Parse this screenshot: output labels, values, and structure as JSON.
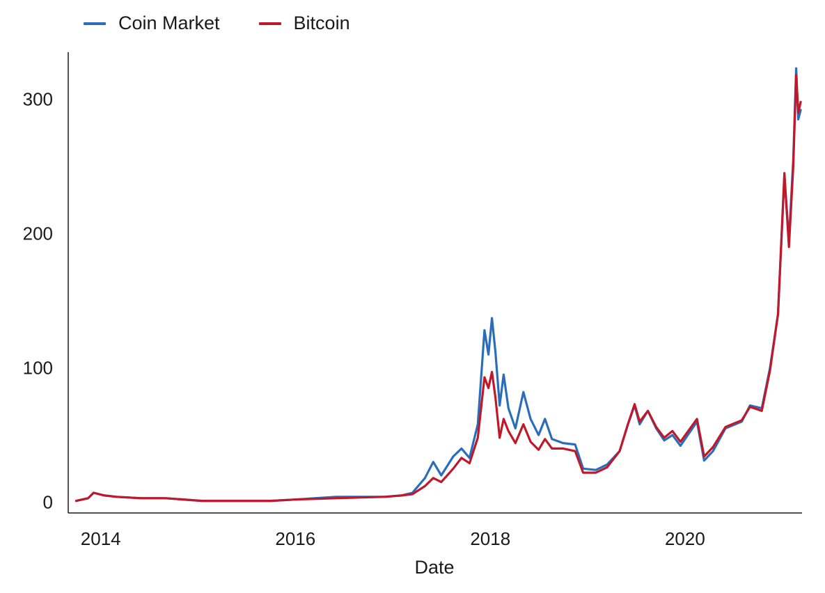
{
  "chart_data": {
    "type": "line",
    "title": "",
    "xlabel": "Date",
    "ylabel": "",
    "xlim": [
      "2013-09-01",
      "2021-03-15"
    ],
    "ylim": [
      -8,
      335
    ],
    "x_ticks": [
      {
        "label": "2014",
        "date": "2014-01-01"
      },
      {
        "label": "2016",
        "date": "2016-01-01"
      },
      {
        "label": "2018",
        "date": "2018-01-01"
      },
      {
        "label": "2020",
        "date": "2020-01-01"
      }
    ],
    "y_ticks": [
      0,
      100,
      200,
      300
    ],
    "grid": false,
    "legend_position": "top-left",
    "series": [
      {
        "name": "Coin Market",
        "color": "#2a6ebb",
        "points": [
          [
            "2013-10-01",
            1
          ],
          [
            "2013-11-15",
            3
          ],
          [
            "2013-12-05",
            7
          ],
          [
            "2014-01-15",
            5
          ],
          [
            "2014-03-01",
            4
          ],
          [
            "2014-06-01",
            3
          ],
          [
            "2014-09-01",
            3
          ],
          [
            "2015-01-15",
            1
          ],
          [
            "2015-06-01",
            1
          ],
          [
            "2015-10-01",
            1
          ],
          [
            "2016-01-01",
            2
          ],
          [
            "2016-06-01",
            4
          ],
          [
            "2016-12-01",
            4
          ],
          [
            "2017-02-01",
            5
          ],
          [
            "2017-03-15",
            7
          ],
          [
            "2017-05-01",
            18
          ],
          [
            "2017-06-01",
            30
          ],
          [
            "2017-07-01",
            20
          ],
          [
            "2017-08-15",
            34
          ],
          [
            "2017-09-15",
            40
          ],
          [
            "2017-10-15",
            33
          ],
          [
            "2017-11-15",
            58
          ],
          [
            "2017-12-10",
            128
          ],
          [
            "2017-12-25",
            110
          ],
          [
            "2018-01-07",
            137
          ],
          [
            "2018-01-20",
            112
          ],
          [
            "2018-02-05",
            72
          ],
          [
            "2018-02-20",
            95
          ],
          [
            "2018-03-10",
            70
          ],
          [
            "2018-04-05",
            55
          ],
          [
            "2018-05-05",
            82
          ],
          [
            "2018-06-01",
            62
          ],
          [
            "2018-07-01",
            50
          ],
          [
            "2018-07-25",
            62
          ],
          [
            "2018-08-20",
            47
          ],
          [
            "2018-10-01",
            44
          ],
          [
            "2018-11-15",
            43
          ],
          [
            "2018-12-15",
            25
          ],
          [
            "2019-02-01",
            24
          ],
          [
            "2019-03-15",
            28
          ],
          [
            "2019-05-01",
            38
          ],
          [
            "2019-06-01",
            58
          ],
          [
            "2019-06-26",
            72
          ],
          [
            "2019-07-15",
            58
          ],
          [
            "2019-08-15",
            68
          ],
          [
            "2019-09-15",
            55
          ],
          [
            "2019-10-15",
            46
          ],
          [
            "2019-11-15",
            50
          ],
          [
            "2019-12-15",
            42
          ],
          [
            "2020-02-15",
            60
          ],
          [
            "2020-03-13",
            31
          ],
          [
            "2020-04-15",
            38
          ],
          [
            "2020-06-01",
            55
          ],
          [
            "2020-08-01",
            60
          ],
          [
            "2020-09-01",
            72
          ],
          [
            "2020-10-15",
            70
          ],
          [
            "2020-11-15",
            100
          ],
          [
            "2020-12-15",
            140
          ],
          [
            "2021-01-08",
            243
          ],
          [
            "2021-01-25",
            195
          ],
          [
            "2021-02-10",
            255
          ],
          [
            "2021-02-21",
            323
          ],
          [
            "2021-03-01",
            285
          ],
          [
            "2021-03-10",
            292
          ]
        ]
      },
      {
        "name": "Bitcoin",
        "color": "#c0182a",
        "points": [
          [
            "2013-10-01",
            1
          ],
          [
            "2013-11-15",
            3
          ],
          [
            "2013-12-05",
            7
          ],
          [
            "2014-01-15",
            5
          ],
          [
            "2014-03-01",
            4
          ],
          [
            "2014-06-01",
            3
          ],
          [
            "2014-09-01",
            3
          ],
          [
            "2015-01-15",
            1
          ],
          [
            "2015-06-01",
            1
          ],
          [
            "2015-10-01",
            1
          ],
          [
            "2016-01-01",
            2
          ],
          [
            "2016-06-01",
            3
          ],
          [
            "2016-12-01",
            4
          ],
          [
            "2017-02-01",
            5
          ],
          [
            "2017-03-15",
            6
          ],
          [
            "2017-05-01",
            12
          ],
          [
            "2017-06-01",
            18
          ],
          [
            "2017-07-01",
            15
          ],
          [
            "2017-08-15",
            25
          ],
          [
            "2017-09-15",
            33
          ],
          [
            "2017-10-15",
            29
          ],
          [
            "2017-11-15",
            48
          ],
          [
            "2017-12-10",
            93
          ],
          [
            "2017-12-25",
            85
          ],
          [
            "2018-01-07",
            97
          ],
          [
            "2018-01-20",
            78
          ],
          [
            "2018-02-05",
            48
          ],
          [
            "2018-02-20",
            62
          ],
          [
            "2018-03-10",
            53
          ],
          [
            "2018-04-05",
            44
          ],
          [
            "2018-05-05",
            58
          ],
          [
            "2018-06-01",
            45
          ],
          [
            "2018-07-01",
            39
          ],
          [
            "2018-07-25",
            47
          ],
          [
            "2018-08-20",
            40
          ],
          [
            "2018-10-01",
            40
          ],
          [
            "2018-11-15",
            38
          ],
          [
            "2018-12-15",
            22
          ],
          [
            "2019-02-01",
            22
          ],
          [
            "2019-03-15",
            26
          ],
          [
            "2019-05-01",
            38
          ],
          [
            "2019-06-01",
            58
          ],
          [
            "2019-06-26",
            73
          ],
          [
            "2019-07-15",
            60
          ],
          [
            "2019-08-15",
            68
          ],
          [
            "2019-09-15",
            56
          ],
          [
            "2019-10-15",
            48
          ],
          [
            "2019-11-15",
            53
          ],
          [
            "2019-12-15",
            45
          ],
          [
            "2020-02-15",
            62
          ],
          [
            "2020-03-13",
            34
          ],
          [
            "2020-04-15",
            41
          ],
          [
            "2020-06-01",
            56
          ],
          [
            "2020-08-01",
            61
          ],
          [
            "2020-09-01",
            71
          ],
          [
            "2020-10-15",
            68
          ],
          [
            "2020-11-15",
            98
          ],
          [
            "2020-12-15",
            140
          ],
          [
            "2021-01-08",
            245
          ],
          [
            "2021-01-25",
            190
          ],
          [
            "2021-02-10",
            250
          ],
          [
            "2021-02-21",
            318
          ],
          [
            "2021-03-01",
            290
          ],
          [
            "2021-03-10",
            298
          ]
        ]
      }
    ]
  }
}
